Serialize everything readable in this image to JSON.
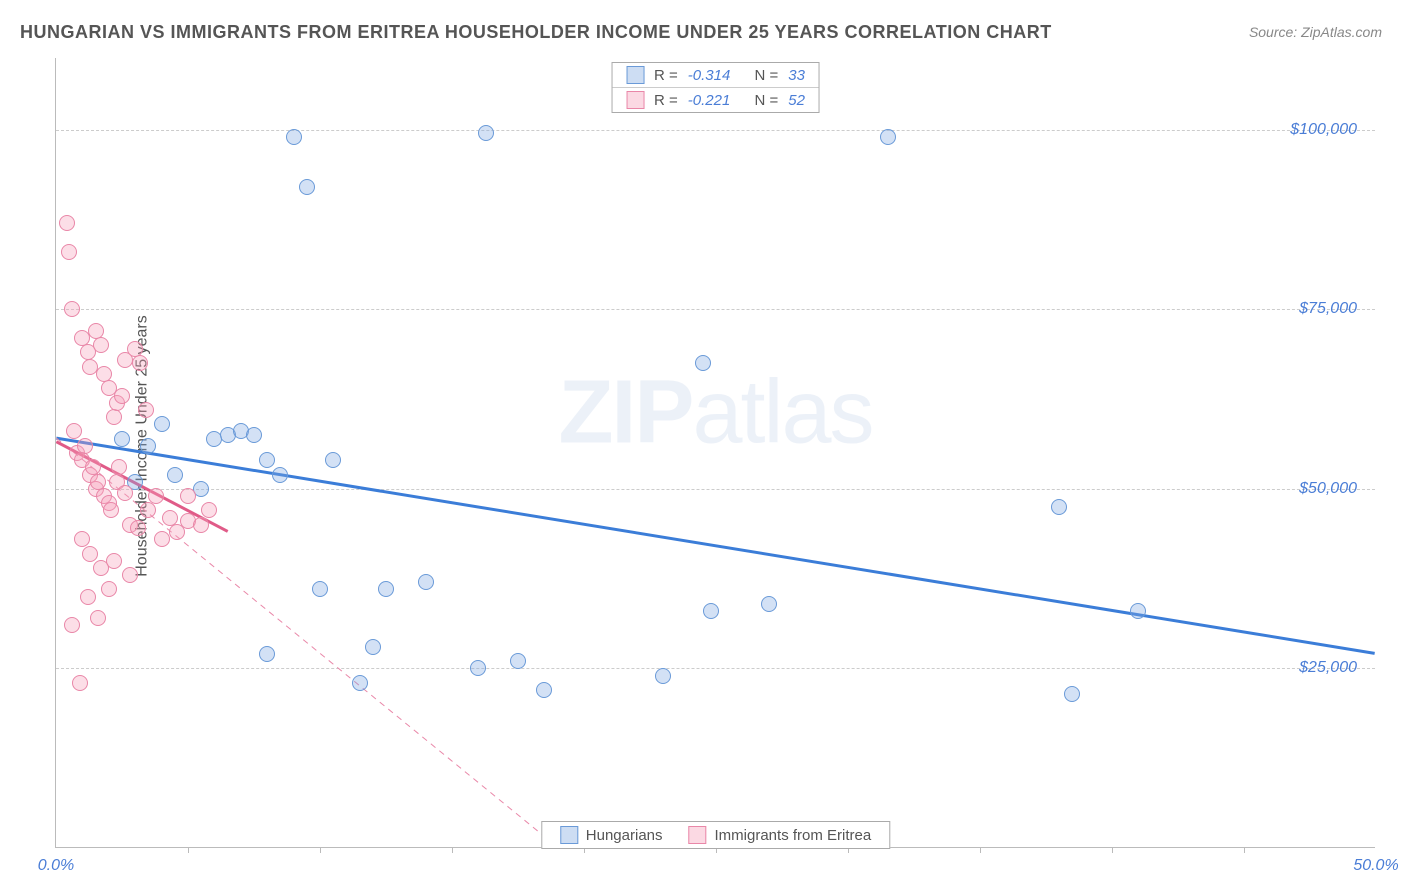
{
  "title": "HUNGARIAN VS IMMIGRANTS FROM ERITREA HOUSEHOLDER INCOME UNDER 25 YEARS CORRELATION CHART",
  "source": "Source: ZipAtlas.com",
  "y_axis_label": "Householder Income Under 25 years",
  "watermark_a": "ZIP",
  "watermark_b": "atlas",
  "chart": {
    "type": "scatter",
    "xlim": [
      0,
      50
    ],
    "ylim": [
      0,
      110000
    ],
    "x_ticks": [
      0,
      50
    ],
    "x_tick_labels": [
      "0.0%",
      "50.0%"
    ],
    "y_ticks": [
      25000,
      50000,
      75000,
      100000
    ],
    "y_tick_labels": [
      "$25,000",
      "$50,000",
      "$75,000",
      "$100,000"
    ],
    "minor_x_ticks": [
      5,
      10,
      15,
      20,
      25,
      30,
      35,
      40,
      45
    ],
    "background_color": "#ffffff",
    "grid_color": "#cccccc",
    "axis_color": "#bbbbbb",
    "tick_label_color": "#4a7dd6",
    "marker_size": 16,
    "series": [
      {
        "name": "Hungarians",
        "color_fill": "rgba(130,170,225,0.35)",
        "color_stroke": "#6a9ad8",
        "R": "-0.314",
        "N": "33",
        "regression": {
          "x1": 0,
          "y1": 57000,
          "x2": 50,
          "y2": 27000,
          "stroke": "#3b7dd8",
          "width": 3,
          "dash": "none"
        },
        "points": [
          [
            9.0,
            99000
          ],
          [
            9.5,
            92000
          ],
          [
            16.3,
            99500
          ],
          [
            24.5,
            67500
          ],
          [
            31.5,
            99000
          ],
          [
            2.5,
            57000
          ],
          [
            3.5,
            56000
          ],
          [
            4.0,
            59000
          ],
          [
            4.5,
            52000
          ],
          [
            5.5,
            50000
          ],
          [
            6.0,
            57000
          ],
          [
            6.5,
            57500
          ],
          [
            7.0,
            58000
          ],
          [
            7.5,
            57500
          ],
          [
            8.0,
            54000
          ],
          [
            8.5,
            52000
          ],
          [
            10.5,
            54000
          ],
          [
            10.0,
            36000
          ],
          [
            11.5,
            23000
          ],
          [
            8.0,
            27000
          ],
          [
            12.0,
            28000
          ],
          [
            16.0,
            25000
          ],
          [
            17.5,
            26000
          ],
          [
            12.5,
            36000
          ],
          [
            18.5,
            22000
          ],
          [
            23.0,
            24000
          ],
          [
            24.8,
            33000
          ],
          [
            27.0,
            34000
          ],
          [
            38.0,
            47500
          ],
          [
            38.5,
            21500
          ],
          [
            41.0,
            33000
          ],
          [
            14.0,
            37000
          ],
          [
            3.0,
            51000
          ]
        ]
      },
      {
        "name": "Immigrants from Eritrea",
        "color_fill": "rgba(245,160,185,0.35)",
        "color_stroke": "#e987a8",
        "R": "-0.221",
        "N": "52",
        "regression": {
          "x1": 0,
          "y1": 57000,
          "x2": 19,
          "y2": 0,
          "stroke": "#e987a8",
          "width": 1,
          "dash": "6 5"
        },
        "regression_solid": {
          "x1": 0,
          "y1": 56500,
          "x2": 6.5,
          "y2": 44000,
          "stroke": "#e05b88",
          "width": 3,
          "dash": "none"
        },
        "points": [
          [
            0.4,
            87000
          ],
          [
            0.5,
            83000
          ],
          [
            0.6,
            75000
          ],
          [
            1.0,
            71000
          ],
          [
            1.2,
            69000
          ],
          [
            1.3,
            67000
          ],
          [
            1.5,
            72000
          ],
          [
            1.7,
            70000
          ],
          [
            1.8,
            66000
          ],
          [
            2.0,
            64000
          ],
          [
            2.2,
            60000
          ],
          [
            2.3,
            62000
          ],
          [
            2.5,
            63000
          ],
          [
            2.6,
            68000
          ],
          [
            3.0,
            69500
          ],
          [
            3.2,
            67500
          ],
          [
            3.4,
            61000
          ],
          [
            0.7,
            58000
          ],
          [
            0.8,
            55000
          ],
          [
            1.0,
            54000
          ],
          [
            1.1,
            56000
          ],
          [
            1.3,
            52000
          ],
          [
            1.4,
            53000
          ],
          [
            1.5,
            50000
          ],
          [
            1.6,
            51000
          ],
          [
            1.8,
            49000
          ],
          [
            2.0,
            48000
          ],
          [
            2.1,
            47000
          ],
          [
            2.3,
            51000
          ],
          [
            2.4,
            53000
          ],
          [
            2.6,
            49500
          ],
          [
            2.8,
            45000
          ],
          [
            3.1,
            44500
          ],
          [
            3.5,
            47000
          ],
          [
            3.8,
            49000
          ],
          [
            4.0,
            43000
          ],
          [
            4.3,
            46000
          ],
          [
            4.6,
            44000
          ],
          [
            5.0,
            45500
          ],
          [
            5.5,
            45000
          ],
          [
            1.0,
            43000
          ],
          [
            1.3,
            41000
          ],
          [
            1.7,
            39000
          ],
          [
            2.2,
            40000
          ],
          [
            2.8,
            38000
          ],
          [
            0.6,
            31000
          ],
          [
            0.9,
            23000
          ],
          [
            1.2,
            35000
          ],
          [
            1.6,
            32000
          ],
          [
            2.0,
            36000
          ],
          [
            5.0,
            49000
          ],
          [
            5.8,
            47000
          ]
        ]
      }
    ]
  },
  "stats_legend": {
    "r_label": "R =",
    "n_label": "N ="
  },
  "bottom_legend": {
    "series1": "Hungarians",
    "series2": "Immigrants from Eritrea"
  }
}
